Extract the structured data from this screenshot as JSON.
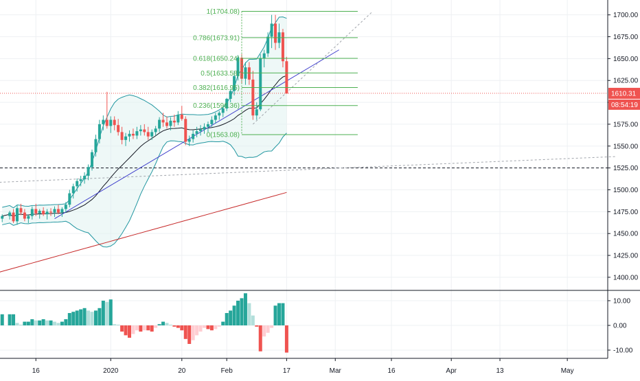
{
  "chart_data": {
    "type": "candlestick",
    "title": "",
    "colors": {
      "up": "#26a69a",
      "down": "#ef5350",
      "ma20": "#131722",
      "band": "#2196a0",
      "band_fill": "#e0f3f1",
      "trendline": "#3f3fcc",
      "ma_long": "#c62828",
      "fib": "#4caf50",
      "last_price": "#ef5350",
      "hist_up_strong": "#26a69a",
      "hist_up_weak": "#b2dfdb",
      "hist_down_strong": "#ef5350",
      "hist_down_weak": "#ffcdd2",
      "grid": "#eef0f3"
    },
    "price_axis": {
      "min": 1385,
      "max": 1717,
      "ticks": [
        "1700.00",
        "1675.00",
        "1650.00",
        "1625.00",
        "1600.00",
        "1575.00",
        "1550.00",
        "1525.00",
        "1500.00",
        "1475.00",
        "1450.00",
        "1425.00",
        "1400.00"
      ],
      "tick_values": [
        1700,
        1675,
        1650,
        1625,
        1600,
        1575,
        1550,
        1525,
        1500,
        1475,
        1450,
        1425,
        1400
      ]
    },
    "time_axis": {
      "ticks": [
        {
          "label": "16",
          "day": 5
        },
        {
          "label": "2020",
          "day": 25
        },
        {
          "label": "20",
          "day": 44
        },
        {
          "label": "Feb",
          "day": 56
        },
        {
          "label": "17",
          "day": 72
        },
        {
          "label": "Mar",
          "day": 85
        },
        {
          "label": "16",
          "day": 100
        },
        {
          "label": "Apr",
          "day": 116
        },
        {
          "label": "13",
          "day": 129
        },
        {
          "label": "May",
          "day": 147
        }
      ]
    },
    "last_price": {
      "value": 1610.31,
      "label": "1610.31",
      "countdown": "08:54:19"
    },
    "candles": [
      [
        -4,
        1467,
        1472,
        1463,
        1470
      ],
      [
        -2,
        1470,
        1476,
        1466,
        1474
      ],
      [
        -1,
        1474,
        1478,
        1462,
        1464
      ],
      [
        0,
        1464,
        1482,
        1460,
        1479
      ],
      [
        1,
        1479,
        1484,
        1471,
        1474
      ],
      [
        2,
        1474,
        1478,
        1464,
        1467
      ],
      [
        3,
        1467,
        1472,
        1462,
        1470
      ],
      [
        4,
        1470,
        1481,
        1466,
        1478
      ],
      [
        5,
        1478,
        1484,
        1470,
        1473
      ],
      [
        6,
        1473,
        1478,
        1467,
        1476
      ],
      [
        7,
        1476,
        1480,
        1470,
        1472
      ],
      [
        8,
        1472,
        1478,
        1466,
        1475
      ],
      [
        9,
        1475,
        1479,
        1470,
        1474
      ],
      [
        10,
        1474,
        1481,
        1469,
        1478
      ],
      [
        11,
        1478,
        1483,
        1472,
        1474
      ],
      [
        12,
        1474,
        1480,
        1469,
        1478
      ],
      [
        13,
        1478,
        1486,
        1474,
        1483
      ],
      [
        14,
        1483,
        1500,
        1480,
        1496
      ],
      [
        15,
        1496,
        1507,
        1490,
        1504
      ],
      [
        16,
        1504,
        1513,
        1498,
        1510
      ],
      [
        17,
        1510,
        1516,
        1504,
        1512
      ],
      [
        18,
        1512,
        1520,
        1507,
        1516
      ],
      [
        19,
        1516,
        1529,
        1511,
        1526
      ],
      [
        20,
        1526,
        1546,
        1522,
        1543
      ],
      [
        21,
        1543,
        1563,
        1538,
        1558
      ],
      [
        22,
        1558,
        1580,
        1553,
        1575
      ],
      [
        23,
        1575,
        1585,
        1568,
        1580
      ],
      [
        24,
        1580,
        1612,
        1570,
        1573
      ],
      [
        25,
        1573,
        1584,
        1565,
        1580
      ],
      [
        26,
        1580,
        1584,
        1568,
        1574
      ],
      [
        27,
        1574,
        1581,
        1562,
        1566
      ],
      [
        28,
        1566,
        1572,
        1552,
        1557
      ],
      [
        29,
        1557,
        1565,
        1550,
        1561
      ],
      [
        30,
        1561,
        1568,
        1555,
        1564
      ],
      [
        31,
        1564,
        1570,
        1558,
        1562
      ],
      [
        32,
        1562,
        1572,
        1558,
        1567
      ],
      [
        33,
        1567,
        1574,
        1562,
        1569
      ],
      [
        34,
        1569,
        1575,
        1562,
        1566
      ],
      [
        35,
        1566,
        1572,
        1557,
        1561
      ],
      [
        36,
        1561,
        1569,
        1557,
        1566
      ],
      [
        37,
        1566,
        1573,
        1562,
        1570
      ],
      [
        38,
        1570,
        1583,
        1566,
        1580
      ],
      [
        39,
        1580,
        1588,
        1572,
        1577
      ],
      [
        40,
        1577,
        1584,
        1570,
        1573
      ],
      [
        41,
        1573,
        1583,
        1568,
        1579
      ],
      [
        42,
        1579,
        1586,
        1572,
        1577
      ],
      [
        43,
        1577,
        1590,
        1574,
        1586
      ],
      [
        44,
        1586,
        1596,
        1579,
        1581
      ],
      [
        45,
        1581,
        1584,
        1551,
        1555
      ],
      [
        46,
        1555,
        1562,
        1550,
        1558
      ],
      [
        47,
        1558,
        1568,
        1554,
        1564
      ],
      [
        48,
        1564,
        1572,
        1560,
        1567
      ],
      [
        49,
        1567,
        1574,
        1562,
        1569
      ],
      [
        50,
        1569,
        1576,
        1564,
        1572
      ],
      [
        51,
        1572,
        1578,
        1566,
        1575
      ],
      [
        52,
        1575,
        1584,
        1572,
        1580
      ],
      [
        53,
        1580,
        1588,
        1576,
        1585
      ],
      [
        54,
        1585,
        1590,
        1580,
        1588
      ],
      [
        55,
        1588,
        1595,
        1583,
        1593
      ],
      [
        56,
        1593,
        1605,
        1590,
        1604
      ],
      [
        57,
        1604,
        1615,
        1600,
        1613
      ],
      [
        58,
        1613,
        1636,
        1608,
        1630
      ],
      [
        59,
        1630,
        1654,
        1625,
        1651
      ],
      [
        60,
        1651,
        1655,
        1622,
        1627
      ],
      [
        61,
        1627,
        1646,
        1620,
        1640
      ],
      [
        62,
        1640,
        1646,
        1620,
        1626
      ],
      [
        63,
        1626,
        1636,
        1580,
        1585
      ],
      [
        64,
        1585,
        1600,
        1580,
        1592
      ],
      [
        65,
        1592,
        1655,
        1590,
        1650
      ],
      [
        66,
        1650,
        1660,
        1640,
        1656
      ],
      [
        67,
        1656,
        1680,
        1652,
        1675
      ],
      [
        68,
        1675,
        1700,
        1662,
        1690
      ],
      [
        69,
        1690,
        1700,
        1660,
        1668
      ],
      [
        70,
        1668,
        1690,
        1662,
        1680
      ],
      [
        71,
        1680,
        1684,
        1640,
        1647
      ],
      [
        72,
        1647,
        1652,
        1610,
        1610
      ]
    ],
    "fib_levels": [
      {
        "ratio": "1",
        "value": 1704.08,
        "label": "1(1704.08)"
      },
      {
        "ratio": "0.786",
        "value": 1673.91,
        "label": "0.786(1673.91)"
      },
      {
        "ratio": "0.618",
        "value": 1650.24,
        "label": "0.618(1650.24)"
      },
      {
        "ratio": "0.5",
        "value": 1633.58,
        "label": "0.5(1633.58)"
      },
      {
        "ratio": "0.382",
        "value": 1616.95,
        "label": "0.382(1616.95)"
      },
      {
        "ratio": "0.236",
        "value": 1596.36,
        "label": "0.236(1596.36)"
      },
      {
        "ratio": "0",
        "value": 1563.08,
        "label": "0(1563.08)"
      }
    ],
    "dashed_level": 1525,
    "trendline": {
      "start": {
        "day": 10,
        "price": 1467
      },
      "end": {
        "day": 86,
        "price": 1660
      }
    },
    "diagonal_dotted": {
      "start": {
        "day": -8,
        "price": 1508
      },
      "end": {
        "day": 160,
        "price": 1538
      }
    },
    "rising_dotted": {
      "start": {
        "day": 63,
        "price": 1575
      },
      "end": {
        "day": 95,
        "price": 1704
      }
    },
    "macd_histogram": {
      "axis": {
        "ticks": [
          "10.00",
          "0.00",
          "-10.00"
        ],
        "tick_values": [
          10,
          0,
          -10
        ]
      },
      "bars": [
        [
          -4,
          4.5
        ],
        [
          -2,
          4.5
        ],
        [
          -1,
          4.5
        ],
        [
          0,
          1.0
        ],
        [
          1,
          0.3
        ],
        [
          2,
          1.5
        ],
        [
          3,
          1.5
        ],
        [
          4,
          2.5
        ],
        [
          5,
          2.0
        ],
        [
          6,
          2.0
        ],
        [
          7,
          2.5
        ],
        [
          8,
          2.0
        ],
        [
          9,
          2.0
        ],
        [
          10,
          1.5
        ],
        [
          11,
          1.0
        ],
        [
          12,
          1.5
        ],
        [
          13,
          2.5
        ],
        [
          14,
          5.0
        ],
        [
          15,
          5.5
        ],
        [
          16,
          6.0
        ],
        [
          17,
          6.5
        ],
        [
          18,
          7.0
        ],
        [
          19,
          6.0
        ],
        [
          20,
          5.5
        ],
        [
          21,
          6.0
        ],
        [
          22,
          7.0
        ],
        [
          23,
          10.0
        ],
        [
          24,
          9.5
        ],
        [
          25,
          10.5
        ],
        [
          26,
          0.5
        ],
        [
          27,
          0.3
        ],
        [
          28,
          -2.5
        ],
        [
          29,
          -4.0
        ],
        [
          30,
          -5.0
        ],
        [
          31,
          -3.5
        ],
        [
          32,
          -2.0
        ],
        [
          33,
          -2.5
        ],
        [
          34,
          -2.0
        ],
        [
          35,
          -2.0
        ],
        [
          36,
          -2.5
        ],
        [
          37,
          -1.0
        ],
        [
          38,
          0.5
        ],
        [
          39,
          1.5
        ],
        [
          40,
          1.0
        ],
        [
          41,
          0.3
        ],
        [
          42,
          -0.5
        ],
        [
          43,
          -1.0
        ],
        [
          44,
          -2.0
        ],
        [
          45,
          -5.5
        ],
        [
          46,
          -7.5
        ],
        [
          47,
          -6.0
        ],
        [
          48,
          -4.0
        ],
        [
          49,
          -2.5
        ],
        [
          50,
          -1.0
        ],
        [
          51,
          -1.5
        ],
        [
          52,
          -2.0
        ],
        [
          53,
          -1.5
        ],
        [
          54,
          -0.5
        ],
        [
          55,
          1.5
        ],
        [
          56,
          5.0
        ],
        [
          57,
          6.0
        ],
        [
          58,
          8.0
        ],
        [
          59,
          10.0
        ],
        [
          60,
          11.0
        ],
        [
          61,
          13.0
        ],
        [
          62,
          9.0
        ],
        [
          63,
          4.0
        ],
        [
          64,
          -0.5
        ],
        [
          65,
          -10.5
        ],
        [
          66,
          -4.5
        ],
        [
          67,
          -3.0
        ],
        [
          68,
          -1.0
        ],
        [
          69,
          8.0
        ],
        [
          70,
          9.0
        ],
        [
          71,
          9.0
        ],
        [
          72,
          -11.0
        ]
      ]
    }
  }
}
